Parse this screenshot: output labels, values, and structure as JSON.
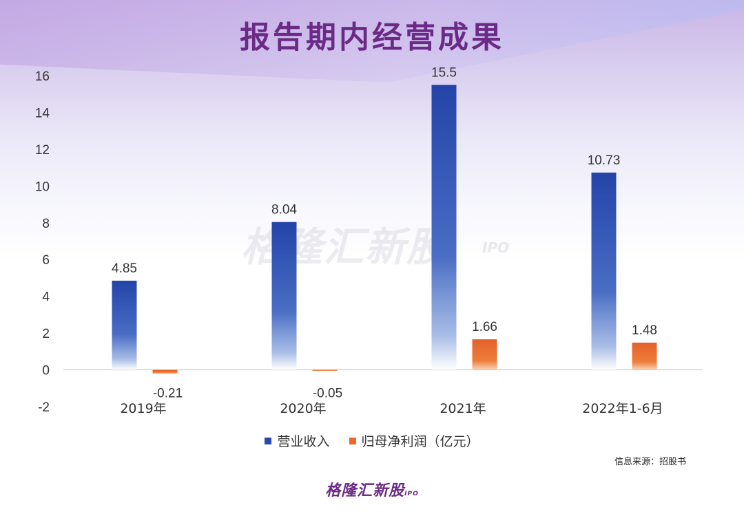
{
  "title": "报告期内经营成果",
  "watermark": {
    "main": "格隆汇新股",
    "sub": "IPO"
  },
  "source": "信息来源：招股书",
  "footer": {
    "brand": "格隆汇新股",
    "sub": "IPO"
  },
  "legend": {
    "series1": "营业收入",
    "series2": "归母净利润（亿元）"
  },
  "colors": {
    "series1": "#2a49b0",
    "series2": "#e8692b",
    "title": "#6b2a86"
  },
  "chart_data": {
    "type": "bar",
    "categories": [
      "2019年",
      "2020年",
      "2021年",
      "2022年1-6月"
    ],
    "series": [
      {
        "name": "营业收入",
        "values": [
          4.85,
          8.04,
          15.5,
          10.73
        ]
      },
      {
        "name": "归母净利润（亿元）",
        "values": [
          -0.21,
          -0.05,
          1.66,
          1.48
        ]
      }
    ],
    "data_labels": [
      [
        "4.85",
        "8.04",
        "15.5",
        "10.73"
      ],
      [
        "-0.21",
        "-0.05",
        "1.66",
        "1.48"
      ]
    ],
    "yticks": [
      "-2",
      "0",
      "2",
      "4",
      "6",
      "8",
      "10",
      "12",
      "14",
      "16"
    ],
    "ylim": [
      -2,
      16
    ],
    "grid": false,
    "legend_position": "bottom"
  }
}
